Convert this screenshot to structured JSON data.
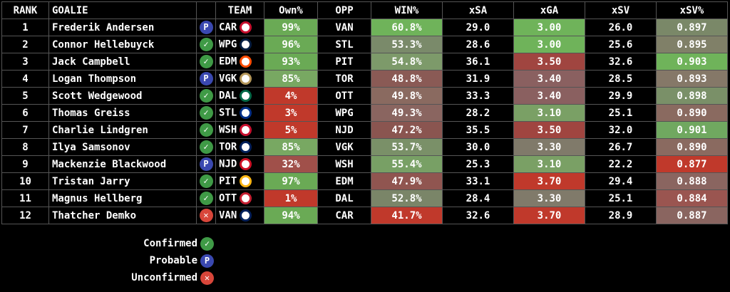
{
  "table": {
    "header": [
      "RANK",
      "GOALIE",
      "",
      "TEAM",
      "Own%",
      "OPP",
      "WIN%",
      "xSA",
      "xGA",
      "xSV",
      "xSV%"
    ],
    "rows": [
      {
        "cells": [
          "1",
          "Frederik Andersen",
          "CAR",
          "99%",
          "VAN",
          "60.8%",
          "29.0",
          "3.00",
          "26.0",
          "0.897"
        ],
        "status": "probable",
        "logo": "#c8102e",
        "fills": [
          "#6aaa55",
          "#6fb35a",
          "#6fb35a",
          "#7a8868"
        ]
      },
      {
        "cells": [
          "2",
          "Connor Hellebuyck",
          "WPG",
          "96%",
          "STL",
          "53.3%",
          "28.6",
          "3.00",
          "25.6",
          "0.895"
        ],
        "status": "confirmed",
        "logo": "#041e42",
        "fills": [
          "#6aaa55",
          "#7a8a6a",
          "#6fb35a",
          "#808068"
        ]
      },
      {
        "cells": [
          "3",
          "Jack Campbell",
          "EDM",
          "93%",
          "PIT",
          "54.8%",
          "36.1",
          "3.50",
          "32.6",
          "0.903"
        ],
        "status": "confirmed",
        "logo": "#ff4c00",
        "fills": [
          "#6aaa55",
          "#7d9a6a",
          "#a04540",
          "#6fb35a"
        ]
      },
      {
        "cells": [
          "4",
          "Logan Thompson",
          "VGK",
          "85%",
          "TOR",
          "48.8%",
          "31.9",
          "3.40",
          "28.5",
          "0.893"
        ],
        "status": "probable",
        "logo": "#b4975a",
        "fills": [
          "#78a862",
          "#8a5a55",
          "#8a6060",
          "#857868"
        ]
      },
      {
        "cells": [
          "5",
          "Scott Wedgewood",
          "DAL",
          "4%",
          "OTT",
          "49.8%",
          "33.3",
          "3.40",
          "29.9",
          "0.898"
        ],
        "status": "confirmed",
        "logo": "#006847",
        "fills": [
          "#c0392b",
          "#8a6a60",
          "#8a6060",
          "#7a9068"
        ]
      },
      {
        "cells": [
          "6",
          "Thomas Greiss",
          "STL",
          "3%",
          "WPG",
          "49.3%",
          "28.2",
          "3.10",
          "25.1",
          "0.890"
        ],
        "status": "confirmed",
        "logo": "#002f87",
        "fills": [
          "#c0392b",
          "#8a6560",
          "#7aa065",
          "#8a6a60"
        ]
      },
      {
        "cells": [
          "7",
          "Charlie Lindgren",
          "WSH",
          "5%",
          "NJD",
          "47.2%",
          "35.5",
          "3.50",
          "32.0",
          "0.901"
        ],
        "status": "confirmed",
        "logo": "#c8102e",
        "fills": [
          "#c0392b",
          "#8a5550",
          "#a04540",
          "#70a860"
        ]
      },
      {
        "cells": [
          "8",
          "Ilya Samsonov",
          "TOR",
          "85%",
          "VGK",
          "53.7%",
          "30.0",
          "3.30",
          "26.7",
          "0.890"
        ],
        "status": "confirmed",
        "logo": "#00205b",
        "fills": [
          "#78a862",
          "#7a9068",
          "#807a6a",
          "#8a6a60"
        ]
      },
      {
        "cells": [
          "9",
          "Mackenzie Blackwood",
          "NJD",
          "32%",
          "WSH",
          "55.4%",
          "25.3",
          "3.10",
          "22.2",
          "0.877"
        ],
        "status": "probable",
        "logo": "#ce1126",
        "fills": [
          "#a0504a",
          "#78a065",
          "#7aa065",
          "#c0392b"
        ]
      },
      {
        "cells": [
          "10",
          "Tristan Jarry",
          "PIT",
          "97%",
          "EDM",
          "47.9%",
          "33.1",
          "3.70",
          "29.4",
          "0.888"
        ],
        "status": "confirmed",
        "logo": "#fcb514",
        "fills": [
          "#6aaa55",
          "#905550",
          "#c0392b",
          "#8a6560"
        ]
      },
      {
        "cells": [
          "11",
          "Magnus Hellberg",
          "OTT",
          "1%",
          "DAL",
          "52.8%",
          "28.4",
          "3.30",
          "25.1",
          "0.884"
        ],
        "status": "confirmed",
        "logo": "#c52032",
        "fills": [
          "#c0392b",
          "#7a8568",
          "#807a6a",
          "#9a5550"
        ]
      },
      {
        "cells": [
          "12",
          "Thatcher Demko",
          "VAN",
          "94%",
          "CAR",
          "41.7%",
          "32.6",
          "3.70",
          "28.9",
          "0.887"
        ],
        "status": "unconfirmed",
        "logo": "#00205b",
        "fills": [
          "#6aaa55",
          "#c0392b",
          "#c0392b",
          "#8a6560"
        ]
      }
    ]
  },
  "legend": [
    {
      "label": "Confirmed",
      "status": "confirmed",
      "icon": "✓",
      "color": "#3f9a46"
    },
    {
      "label": "Probable",
      "status": "probable",
      "icon": "P",
      "color": "#3a48b0"
    },
    {
      "label": "Unconfirmed",
      "status": "unconfirmed",
      "icon": "✕",
      "color": "#d8463a"
    }
  ]
}
